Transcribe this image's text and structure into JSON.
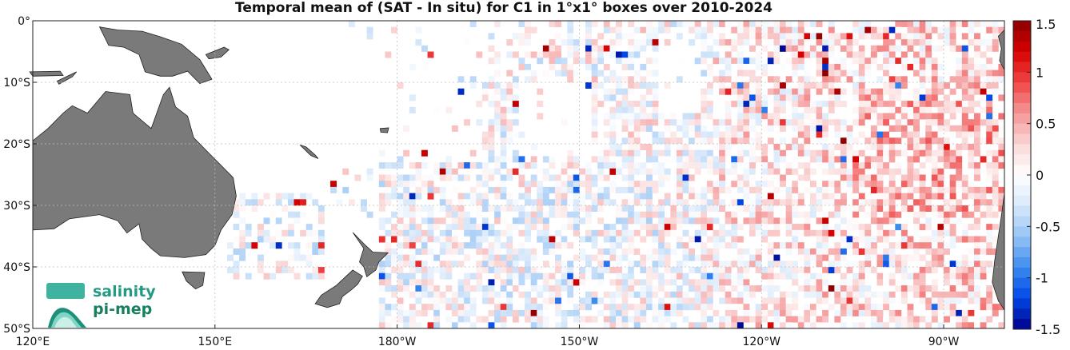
{
  "title": "Temporal mean of (SAT - In situ) for C1 in 1°x1° boxes over 2010-2024",
  "map": {
    "lon_range": [
      120,
      280
    ],
    "lat_range": [
      -50,
      0
    ],
    "x_ticks": [
      {
        "lon": 120,
        "label": "120°E"
      },
      {
        "lon": 150,
        "label": "150°E"
      },
      {
        "lon": 180,
        "label": "180°W"
      },
      {
        "lon": 210,
        "label": "150°W"
      },
      {
        "lon": 240,
        "label": "120°W"
      },
      {
        "lon": 270,
        "label": "90°W"
      }
    ],
    "y_ticks": [
      {
        "lat": 0,
        "label": "0°"
      },
      {
        "lat": -10,
        "label": "10°S"
      },
      {
        "lat": -20,
        "label": "20°S"
      },
      {
        "lat": -30,
        "label": "30°S"
      },
      {
        "lat": -40,
        "label": "40°S"
      },
      {
        "lat": -50,
        "label": "50°S"
      }
    ],
    "grid": true,
    "land_color": "#7a7a7a",
    "grid_color": "#bdbdbd",
    "land": [
      {
        "name": "Australia",
        "points": [
          [
            129.0,
            -15.0
          ],
          [
            132.0,
            -11.5
          ],
          [
            136.0,
            -12.0
          ],
          [
            136.5,
            -15.0
          ],
          [
            139.5,
            -17.5
          ],
          [
            141.5,
            -12.0
          ],
          [
            142.5,
            -10.8
          ],
          [
            143.5,
            -14.0
          ],
          [
            145.5,
            -15.5
          ],
          [
            146.5,
            -19.0
          ],
          [
            149.0,
            -21.5
          ],
          [
            151.0,
            -23.5
          ],
          [
            153.0,
            -25.5
          ],
          [
            153.5,
            -28.5
          ],
          [
            152.8,
            -31.5
          ],
          [
            151.0,
            -34.0
          ],
          [
            150.0,
            -36.5
          ],
          [
            148.5,
            -38.0
          ],
          [
            145.0,
            -38.5
          ],
          [
            141.0,
            -38.2
          ],
          [
            139.5,
            -37.0
          ],
          [
            138.0,
            -35.5
          ],
          [
            137.5,
            -33.0
          ],
          [
            135.5,
            -34.5
          ],
          [
            134.0,
            -32.5
          ],
          [
            131.0,
            -31.5
          ],
          [
            126.0,
            -32.2
          ],
          [
            123.5,
            -33.8
          ],
          [
            120,
            -34.0
          ],
          [
            120,
            -19.5
          ],
          [
            122.5,
            -17.5
          ],
          [
            125.0,
            -15.0
          ],
          [
            126.5,
            -13.8
          ]
        ]
      },
      {
        "name": "Tasmania",
        "points": [
          [
            144.6,
            -40.8
          ],
          [
            148.3,
            -40.9
          ],
          [
            148.0,
            -43.0
          ],
          [
            146.8,
            -43.6
          ],
          [
            145.3,
            -42.3
          ]
        ]
      },
      {
        "name": "New Guinea",
        "points": [
          [
            131.0,
            -1.0
          ],
          [
            134.0,
            -1.5
          ],
          [
            138.0,
            -1.7
          ],
          [
            141.0,
            -2.6
          ],
          [
            144.5,
            -3.8
          ],
          [
            147.5,
            -6.3
          ],
          [
            149.5,
            -9.5
          ],
          [
            147.5,
            -10.2
          ],
          [
            145.5,
            -8.2
          ],
          [
            143.0,
            -9.0
          ],
          [
            141.0,
            -9.0
          ],
          [
            138.5,
            -8.3
          ],
          [
            137.5,
            -5.5
          ],
          [
            135.0,
            -4.3
          ],
          [
            132.5,
            -4.0
          ]
        ]
      },
      {
        "name": "New Britain",
        "points": [
          [
            148.5,
            -5.5
          ],
          [
            151.5,
            -4.3
          ],
          [
            152.3,
            -4.7
          ],
          [
            151.0,
            -5.9
          ],
          [
            149.0,
            -6.2
          ]
        ]
      },
      {
        "name": "Sumbawa",
        "points": [
          [
            119.5,
            -8.3
          ],
          [
            124.5,
            -8.2
          ],
          [
            125.0,
            -8.9
          ],
          [
            120.0,
            -9.0
          ]
        ]
      },
      {
        "name": "Timor",
        "points": [
          [
            124.0,
            -9.8
          ],
          [
            127.2,
            -8.3
          ],
          [
            126.5,
            -9.1
          ],
          [
            124.3,
            -10.3
          ]
        ]
      },
      {
        "name": "New Zealand North",
        "points": [
          [
            172.7,
            -34.4
          ],
          [
            174.8,
            -36.5
          ],
          [
            176.0,
            -37.6
          ],
          [
            178.5,
            -37.7
          ],
          [
            177.0,
            -39.2
          ],
          [
            176.5,
            -40.5
          ],
          [
            175.0,
            -41.6
          ],
          [
            174.5,
            -40.0
          ],
          [
            173.8,
            -39.2
          ],
          [
            174.5,
            -37.0
          ]
        ]
      },
      {
        "name": "New Zealand South",
        "points": [
          [
            172.7,
            -40.5
          ],
          [
            174.3,
            -41.5
          ],
          [
            173.5,
            -42.8
          ],
          [
            172.5,
            -43.7
          ],
          [
            171.0,
            -44.8
          ],
          [
            170.5,
            -46.0
          ],
          [
            168.5,
            -46.6
          ],
          [
            166.5,
            -46.0
          ],
          [
            167.5,
            -44.6
          ],
          [
            170.0,
            -43.0
          ],
          [
            171.5,
            -41.6
          ]
        ]
      },
      {
        "name": "New Caledonia",
        "points": [
          [
            164.0,
            -20.2
          ],
          [
            165.0,
            -20.5
          ],
          [
            166.5,
            -21.8
          ],
          [
            167.0,
            -22.4
          ],
          [
            165.8,
            -21.9
          ]
        ]
      },
      {
        "name": "Fiji",
        "points": [
          [
            177.2,
            -17.5
          ],
          [
            178.6,
            -17.4
          ],
          [
            178.4,
            -18.2
          ],
          [
            177.3,
            -18.1
          ]
        ]
      },
      {
        "name": "South America",
        "points": [
          [
            279.0,
            0
          ],
          [
            280,
            0
          ],
          [
            280,
            -47.0
          ],
          [
            279.0,
            -45.5
          ],
          [
            278.0,
            -42.5
          ],
          [
            278.4,
            -39.0
          ],
          [
            279.0,
            -35.0
          ],
          [
            279.6,
            -31.0
          ],
          [
            280,
            -28.0
          ],
          [
            280,
            -8.0
          ],
          [
            279.2,
            -6.5
          ],
          [
            279.5,
            -4.5
          ],
          [
            279.0,
            -2.5
          ],
          [
            280,
            -1.5
          ],
          [
            280,
            0
          ]
        ]
      }
    ]
  },
  "colorbar": {
    "ticks": [
      {
        "value": 1.5,
        "label": "1.5"
      },
      {
        "value": 1,
        "label": "1"
      },
      {
        "value": 0.5,
        "label": "0.5"
      },
      {
        "value": 0,
        "label": "0"
      },
      {
        "value": -0.5,
        "label": "-0.5"
      },
      {
        "value": -1,
        "label": "-1"
      },
      {
        "value": -1.5,
        "label": "-1.5"
      }
    ],
    "range": [
      -1.5,
      1.5
    ],
    "steps": 30,
    "neg_color": "#00008a",
    "pos_color": "#8a0000"
  },
  "logo": {
    "line1": "salinity",
    "line2": "pi-mep"
  }
}
